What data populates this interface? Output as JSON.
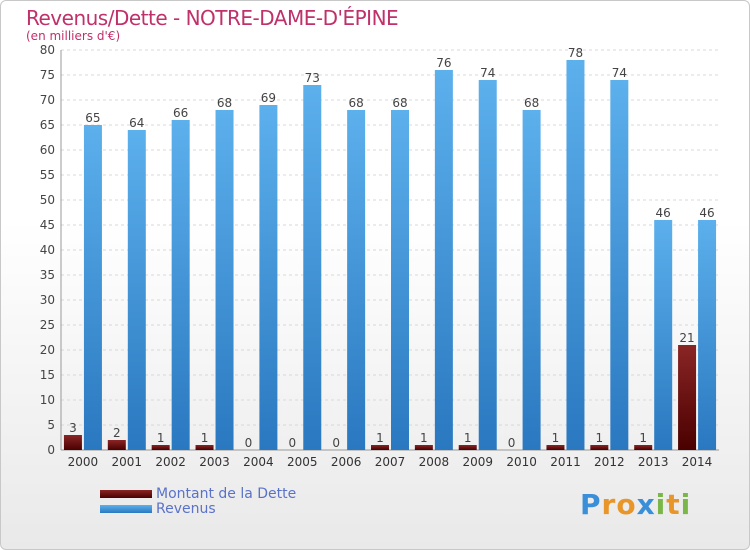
{
  "chart_data": {
    "type": "bar",
    "title": "Revenus/Dette - NOTRE-DAME-D'ÉPINE",
    "subtitle": "(en milliers d'€)",
    "categories": [
      "2000",
      "2001",
      "2002",
      "2003",
      "2004",
      "2005",
      "2006",
      "2007",
      "2008",
      "2009",
      "2010",
      "2011",
      "2012",
      "2013",
      "2014"
    ],
    "series": [
      {
        "name": "Montant de la Dette",
        "color": "#6b0a0a",
        "values": [
          3,
          2,
          1,
          1,
          0,
          0,
          0,
          1,
          1,
          1,
          0,
          1,
          1,
          1,
          21
        ]
      },
      {
        "name": "Revenus",
        "color": "#4a9fe0",
        "values": [
          65,
          64,
          66,
          68,
          69,
          73,
          68,
          68,
          76,
          74,
          68,
          78,
          74,
          46,
          46
        ]
      }
    ],
    "ylim": [
      0,
      80
    ],
    "ytick_step": 5,
    "grid": true,
    "legend_position": "bottom-left"
  },
  "logo": {
    "letters": [
      "P",
      "r",
      "o",
      "x",
      "i",
      "t",
      "i"
    ],
    "colors": [
      "#3b8fd8",
      "#e8962a",
      "#e8962a",
      "#3b8fd8",
      "#7ab648",
      "#e8962a",
      "#7ab648"
    ]
  }
}
